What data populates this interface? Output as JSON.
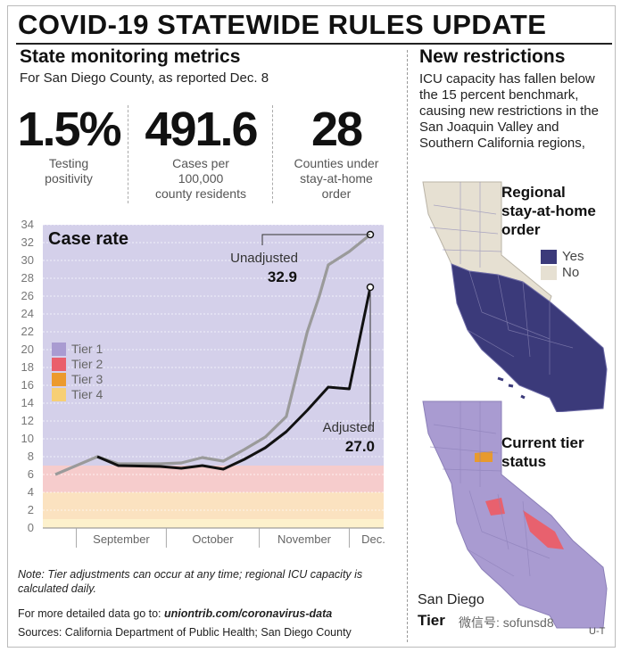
{
  "headline": "COVID-19 STATEWIDE RULES UPDATE",
  "left": {
    "title": "State monitoring metrics",
    "subtitle": "For San Diego County, as reported Dec. 8",
    "metrics": [
      {
        "value": "1.5%",
        "label_lines": [
          "Testing",
          "positivity"
        ]
      },
      {
        "value": "491.6",
        "label_lines": [
          "Cases per",
          "100,000",
          "county residents"
        ]
      },
      {
        "value": "28",
        "label_lines": [
          "Counties under",
          "stay-at-home",
          "order"
        ]
      }
    ]
  },
  "right": {
    "title": "New restrictions",
    "text": "ICU capacity has fallen below the 15 percent benchmark, causing new restrictions in the San Joaquin Valley and Southern California regions,",
    "map1": {
      "title_lines": [
        "Regional",
        "stay-at-home",
        "order"
      ],
      "legend": [
        {
          "label": "Yes",
          "color": "#3b3a7a"
        },
        {
          "label": "No",
          "color": "#e6e0d2"
        }
      ]
    },
    "map2": {
      "title_lines": [
        "Current tier",
        "status"
      ],
      "colors": {
        "tier1": "#a99bd1",
        "tier2": "#e8616e",
        "tier3": "#e89a2e"
      }
    },
    "san_diego_label": "San Diego",
    "san_diego_tier": "Tier",
    "watermark": "微信号: sofunsd8",
    "corner_mark": "U-T"
  },
  "chart_data": {
    "type": "line",
    "title": "Case rate",
    "ylim": [
      0,
      34
    ],
    "yticks": [
      0,
      2,
      4,
      6,
      8,
      10,
      12,
      14,
      16,
      18,
      20,
      22,
      24,
      26,
      28,
      30,
      32,
      34
    ],
    "month_labels": [
      "September",
      "October",
      "November",
      "Dec."
    ],
    "tiers": [
      {
        "name": "Tier 1",
        "from": 7,
        "to": 34,
        "color": "#d4d0ea",
        "legend_color": "#a99bd1"
      },
      {
        "name": "Tier 2",
        "from": 4,
        "to": 7,
        "color": "#f6cccc",
        "legend_color": "#ea5f6c"
      },
      {
        "name": "Tier 3",
        "from": 1,
        "to": 4,
        "color": "#fbe2c0",
        "legend_color": "#ec9a2d"
      },
      {
        "name": "Tier 4",
        "from": 0,
        "to": 1,
        "color": "#fdf1cc",
        "legend_color": "#f7cf74"
      }
    ],
    "series": [
      {
        "name": "Unadjusted",
        "color": "#9a9a9a",
        "x": [
          "Aug. 25",
          "Sep. 8",
          "Sep. 15",
          "Sep. 29",
          "Oct. 6",
          "Oct. 13",
          "Oct. 20",
          "Oct. 27",
          "Nov. 3",
          "Nov. 10",
          "Nov. 17",
          "Nov. 21",
          "Nov. 24",
          "Dec. 1",
          "Dec. 8"
        ],
        "values": [
          6.0,
          8.0,
          7.2,
          7.2,
          7.3,
          7.9,
          7.5,
          8.8,
          10.2,
          12.5,
          22.0,
          26.0,
          29.5,
          31.0,
          32.9
        ],
        "end_label": "Unadjusted",
        "end_value": "32.9"
      },
      {
        "name": "Adjusted",
        "color": "#111111",
        "x": [
          "Sep. 8",
          "Sep. 15",
          "Sep. 29",
          "Oct. 6",
          "Oct. 13",
          "Oct. 20",
          "Oct. 27",
          "Nov. 3",
          "Nov. 10",
          "Nov. 17",
          "Nov. 24",
          "Dec. 1",
          "Dec. 8"
        ],
        "values": [
          8.0,
          7.0,
          6.9,
          6.7,
          7.0,
          6.6,
          7.7,
          9.0,
          10.8,
          13.2,
          15.8,
          15.6,
          27.0
        ],
        "end_label": "Adjusted",
        "end_value": "27.0"
      }
    ]
  },
  "footer": {
    "note": "Note: Tier adjustments can occur at any time; regional ICU capacity is calculated daily.",
    "more_prefix": "For more detailed data go to: ",
    "more_link": "uniontrib.com/coronavirus-data",
    "sources": "Sources: California Department of Public Health; San Diego County"
  }
}
